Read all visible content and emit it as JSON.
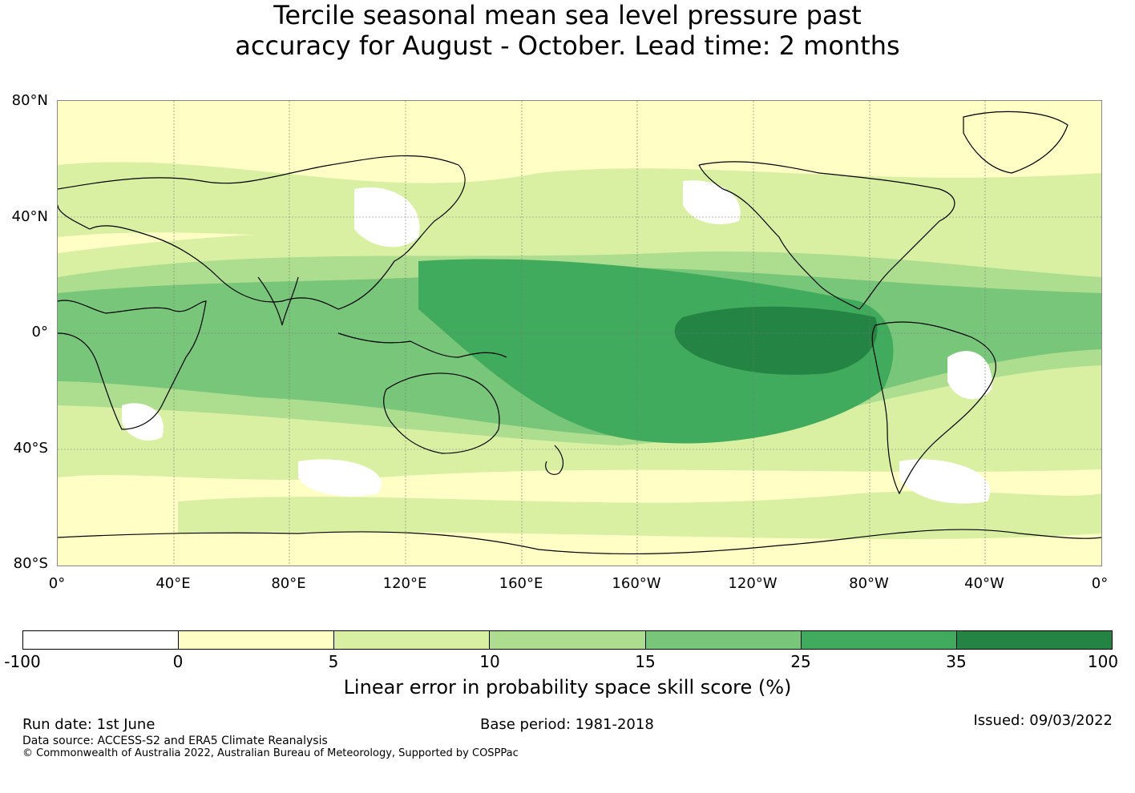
{
  "title_line1": "Tercile seasonal mean sea level pressure past",
  "title_line2": "accuracy for August - October. Lead time: 2 months",
  "lat_labels": [
    "80°N",
    "40°N",
    "0°",
    "40°S",
    "80°S"
  ],
  "lon_labels": [
    "0°",
    "40°E",
    "80°E",
    "120°E",
    "160°E",
    "160°W",
    "120°W",
    "80°W",
    "40°W",
    "0°"
  ],
  "colorbar": {
    "colors": [
      "#ffffff",
      "#ffffc5",
      "#d9f0a3",
      "#addd8e",
      "#78c679",
      "#41ab5d",
      "#238443"
    ],
    "ticks": [
      "-100",
      "0",
      "5",
      "10",
      "15",
      "25",
      "35",
      "100"
    ],
    "label": "Linear error in probability space skill score (%)"
  },
  "footer": {
    "run_date": "Run date: 1st June",
    "base_period": "Base period: 1981-2018",
    "issued": "Issued: 09/03/2022",
    "data_source": "Data source: ACCESS-S2 and ERA5 Climate Reanalysis",
    "copyright": "© Commonwealth of Australia 2022, Australian Bureau of Meteorology, Supported by COSPPac"
  }
}
